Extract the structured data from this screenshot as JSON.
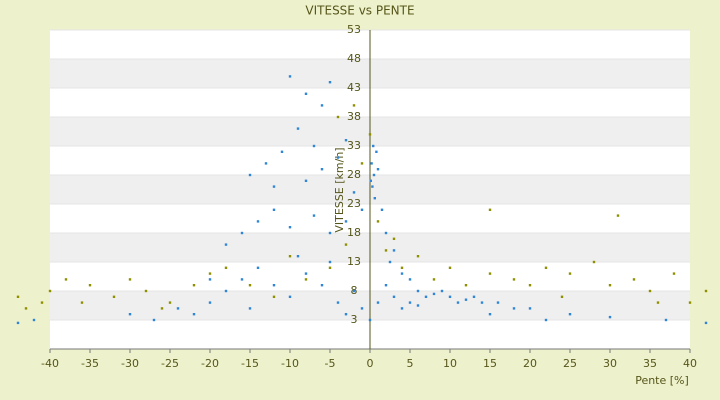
{
  "chart_data": {
    "type": "scatter",
    "title": "VITESSE vs PENTE",
    "x_label": "Pente [%]",
    "y_label": "VITESSE [km/h]",
    "xlim": [
      -40,
      40
    ],
    "xticks": [
      -40,
      -35,
      -30,
      -25,
      -20,
      -15,
      -10,
      -5,
      0,
      5,
      10,
      15,
      20,
      25,
      30,
      35,
      40
    ],
    "ylim": [
      -2,
      53
    ],
    "yticks": [
      3,
      8,
      13,
      18,
      23,
      28,
      33,
      38,
      43,
      48,
      53
    ],
    "grid": true,
    "series": [
      {
        "color": "#2f86d6",
        "x": [
          -10,
          -8,
          -6,
          -5,
          -9,
          -7,
          -11,
          -13,
          -15,
          -12,
          -8,
          -6,
          -4,
          -3,
          -2,
          -14,
          -16,
          -18,
          -12,
          -10,
          -7,
          -5,
          -3,
          -1,
          0.2,
          0.5,
          0.8,
          0.3,
          0.6,
          1,
          0.4,
          0.1,
          1.5,
          2,
          3,
          2.5,
          4,
          5,
          6,
          7,
          8,
          10,
          12,
          14,
          16,
          9,
          11,
          13,
          18,
          20,
          25,
          30,
          37,
          42,
          -44,
          -42,
          -27,
          -22,
          -20,
          -18,
          -16,
          -14,
          -12,
          -10,
          -8,
          -6,
          -4,
          -2,
          -1,
          1,
          2,
          3,
          4,
          5,
          6,
          -9,
          -5,
          -3,
          -20,
          -24,
          0,
          15,
          22,
          -30,
          -15
        ],
        "values": [
          45,
          42,
          40,
          44,
          36,
          33,
          32,
          30,
          28,
          26,
          27,
          29,
          31,
          34,
          25,
          20,
          18,
          16,
          22,
          19,
          21,
          18,
          20,
          22,
          30,
          28,
          32,
          26,
          24,
          29,
          33,
          27,
          22,
          18,
          15,
          13,
          11,
          10,
          8,
          7,
          7.5,
          7,
          6.5,
          6,
          6,
          8,
          6,
          7,
          5,
          5,
          4,
          3.5,
          3,
          2.5,
          2.5,
          3,
          3,
          4,
          6,
          8,
          10,
          12,
          9,
          7,
          11,
          9,
          6,
          8,
          5,
          6,
          9,
          7,
          5,
          6,
          5.5,
          14,
          13,
          4,
          10,
          5,
          3,
          4,
          3,
          4,
          5
        ]
      },
      {
        "color": "#8f8f00",
        "x": [
          -44,
          -43,
          -41,
          -40,
          -38,
          -35,
          -32,
          -30,
          -28,
          -25,
          -22,
          -20,
          -18,
          -15,
          -12,
          -10,
          -8,
          -5,
          -3,
          -2,
          -4,
          -1,
          0,
          1,
          2,
          3,
          4,
          6,
          8,
          10,
          12,
          15,
          15,
          18,
          20,
          22,
          25,
          28,
          30,
          31,
          33,
          35,
          38,
          40,
          42,
          44,
          -36,
          -26,
          24,
          36
        ],
        "values": [
          7,
          5,
          6,
          8,
          10,
          9,
          7,
          10,
          8,
          6,
          9,
          11,
          12,
          9,
          7,
          14,
          10,
          12,
          16,
          40,
          38,
          30,
          35,
          20,
          15,
          17,
          12,
          14,
          10,
          12,
          9,
          11,
          22,
          10,
          9,
          12,
          11,
          13,
          9,
          21,
          10,
          8,
          11,
          6,
          8,
          7,
          6,
          5,
          7,
          6
        ]
      }
    ]
  }
}
